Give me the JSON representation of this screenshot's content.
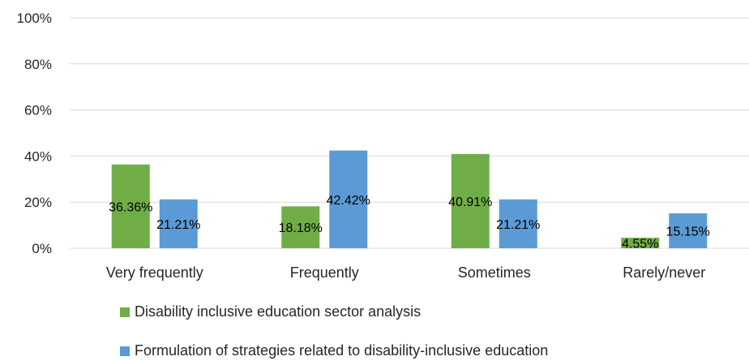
{
  "chart_data": {
    "type": "bar",
    "categories": [
      "Very frequently",
      "Frequently",
      "Sometimes",
      "Rarely/never"
    ],
    "series": [
      {
        "name": "Disability inclusive education sector analysis",
        "color": "#70ad47",
        "values": [
          36.36,
          18.18,
          40.91,
          4.55
        ],
        "labels": [
          "36.36%",
          "18.18%",
          "40.91%",
          "4.55%"
        ]
      },
      {
        "name": "Formulation of strategies related to disability-inclusive education",
        "color": "#5b9bd5",
        "values": [
          21.21,
          42.42,
          21.21,
          15.15
        ],
        "labels": [
          "21.21%",
          "42.42%",
          "21.21%",
          "15.15%"
        ]
      }
    ],
    "y_ticks": [
      "0%",
      "20%",
      "40%",
      "60%",
      "80%",
      "100%"
    ],
    "ylim": [
      0,
      100
    ],
    "grid": true,
    "legend_position": "bottom"
  }
}
